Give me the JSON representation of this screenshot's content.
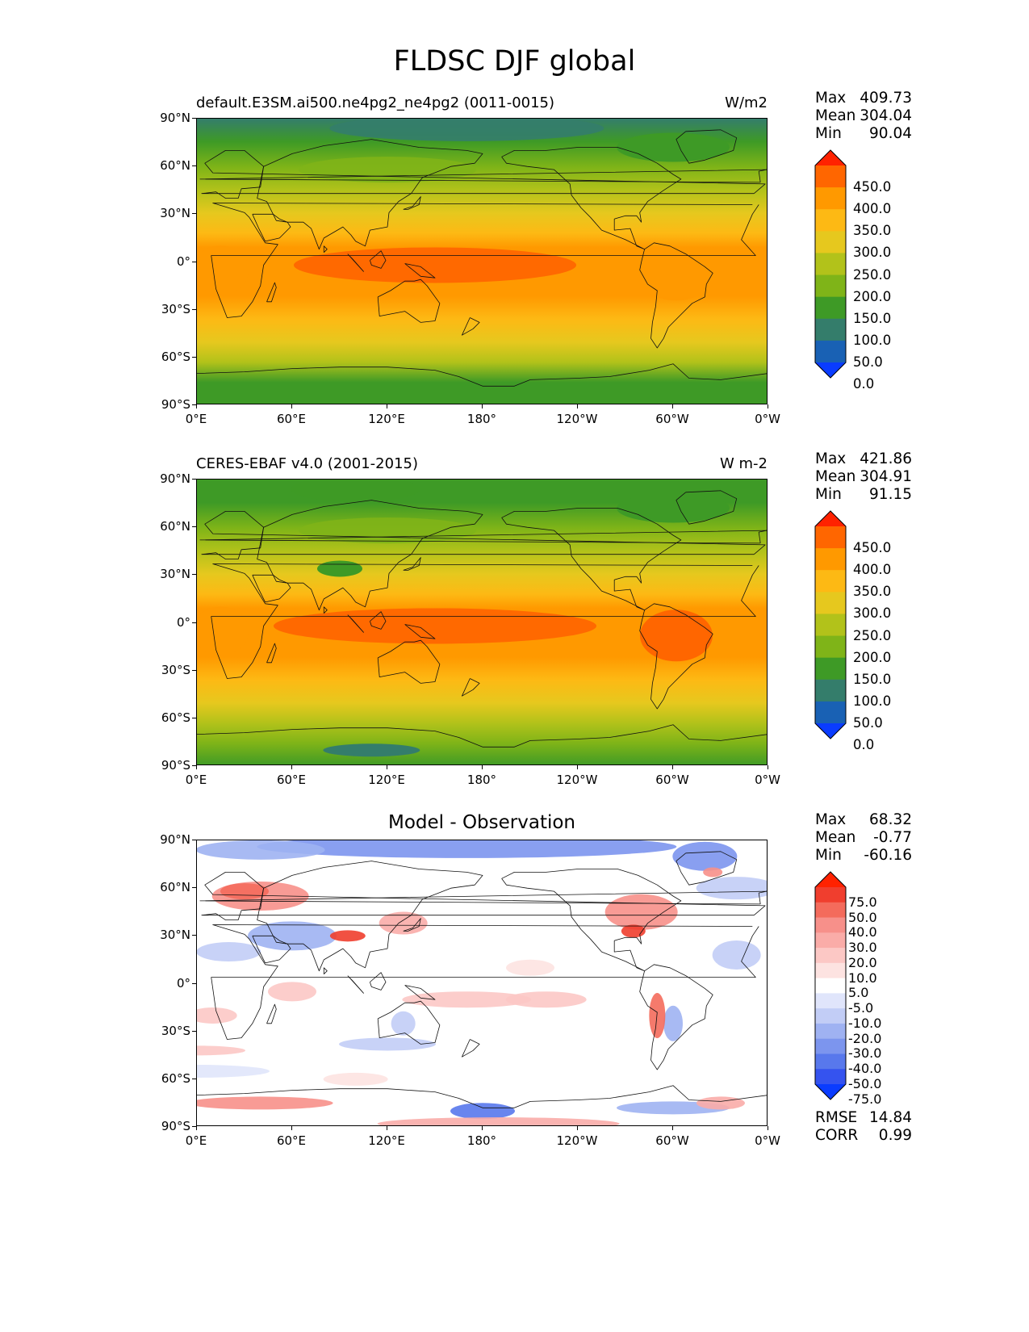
{
  "title": "FLDSC DJF global",
  "panels": [
    {
      "id": "model",
      "left_title": "default.E3SM.ai500.ne4pg2_ne4pg2 (0011-0015)",
      "center_title": "",
      "right_title": "W/m2",
      "stats": {
        "Max": "409.73",
        "Mean": "304.04",
        "Min": "90.04"
      },
      "colorbar_labels": [
        "450.0",
        "400.0",
        "350.0",
        "300.0",
        "250.0",
        "200.0",
        "150.0",
        "100.0",
        "50.0",
        "0.0"
      ],
      "colorbar_colors": [
        "#ff2200",
        "#ff6600",
        "#ff9900",
        "#fdb914",
        "#e6c81e",
        "#b2c21a",
        "#7fb418",
        "#3e9a26",
        "#347d6b",
        "#1961b4",
        "#0a3cff"
      ]
    },
    {
      "id": "obs",
      "left_title": "CERES-EBAF v4.0 (2001-2015)",
      "center_title": "",
      "right_title": "W m-2",
      "stats": {
        "Max": "421.86",
        "Mean": "304.91",
        "Min": "91.15"
      },
      "colorbar_labels": [
        "450.0",
        "400.0",
        "350.0",
        "300.0",
        "250.0",
        "200.0",
        "150.0",
        "100.0",
        "50.0",
        "0.0"
      ],
      "colorbar_colors": [
        "#ff2200",
        "#ff6600",
        "#ff9900",
        "#fdb914",
        "#e6c81e",
        "#b2c21a",
        "#7fb418",
        "#3e9a26",
        "#347d6b",
        "#1961b4",
        "#0a3cff"
      ]
    },
    {
      "id": "diff",
      "left_title": "",
      "center_title": "Model - Observation",
      "right_title": "",
      "stats": {
        "Max": "68.32",
        "Mean": "-0.77",
        "Min": "-60.16"
      },
      "colorbar_labels": [
        "75.0",
        "50.0",
        "40.0",
        "30.0",
        "20.0",
        "10.0",
        "5.0",
        "-5.0",
        "-10.0",
        "-20.0",
        "-30.0",
        "-40.0",
        "-50.0",
        "-75.0"
      ],
      "colorbar_colors": [
        "#ff2200",
        "#f03e2e",
        "#f46b5c",
        "#f7908a",
        "#faaca8",
        "#fcc8c5",
        "#fde3e1",
        "#ffffff",
        "#e0e5fb",
        "#c2cdf6",
        "#9fb2f2",
        "#7c95ee",
        "#5878ec",
        "#3553ef",
        "#0a3cff"
      ],
      "metrics": {
        "RMSE": "14.84",
        "CORR": "0.99"
      }
    }
  ],
  "axes": {
    "lat_ticks": [
      "90°N",
      "60°N",
      "30°N",
      "0°",
      "30°S",
      "60°S",
      "90°S"
    ],
    "lon_ticks": [
      "0°E",
      "60°E",
      "120°E",
      "180°",
      "120°W",
      "60°W",
      "0°W"
    ]
  }
}
